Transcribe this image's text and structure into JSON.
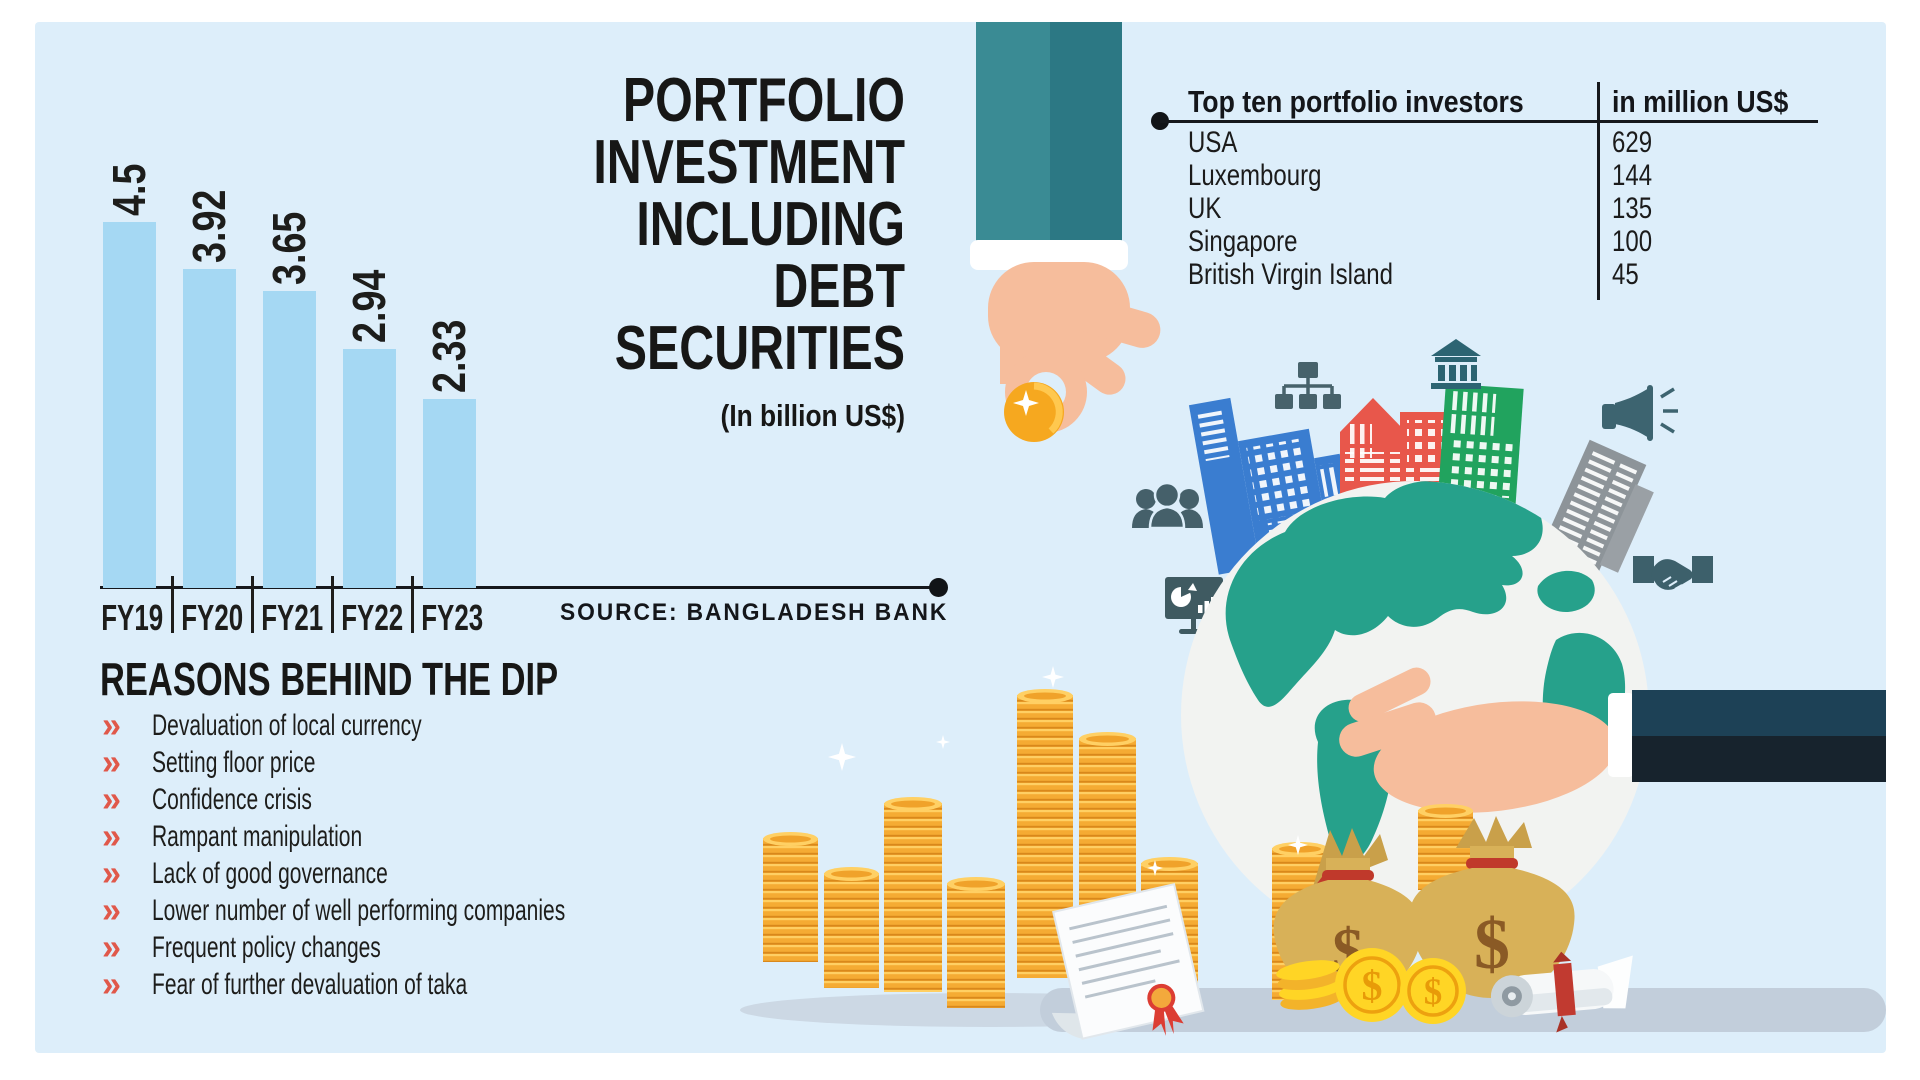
{
  "chart_data": {
    "type": "bar",
    "title": "PORTFOLIO INVESTMENT INCLUDING DEBT SECURITIES",
    "title_lines": [
      "PORTFOLIO",
      "INVESTMENT",
      "INCLUDING",
      "DEBT",
      "SECURITIES"
    ],
    "subtitle": "(In billion US$)",
    "categories": [
      "FY19",
      "FY20",
      "FY21",
      "FY22",
      "FY23"
    ],
    "values": [
      4.5,
      3.92,
      3.65,
      2.94,
      2.33
    ],
    "value_labels": [
      "4.5",
      "3.92",
      "3.65",
      "2.94",
      "2.33"
    ],
    "xlabel": "",
    "ylabel": "",
    "ylim": [
      0,
      4.5
    ],
    "grid": false,
    "legend": false,
    "bar_color": "#a5d8f3",
    "source": "SOURCE: BANGLADESH BANK"
  },
  "investors_table": {
    "title": "Top ten portfolio investors",
    "unit": "in million US$",
    "rows": [
      {
        "country": "USA",
        "value": "629"
      },
      {
        "country": "Luxembourg",
        "value": "144"
      },
      {
        "country": "UK",
        "value": "135"
      },
      {
        "country": "Singapore",
        "value": "100"
      },
      {
        "country": "British Virgin Island",
        "value": "45"
      }
    ]
  },
  "reasons": {
    "heading": "REASONS BEHIND THE DIP",
    "bullet": "»",
    "items": [
      "Devaluation of local currency",
      "Setting floor price",
      "Confidence crisis",
      "Rampant manipulation",
      "Lack of good governance",
      "Lower number of well performing companies",
      "Frequent policy changes",
      "Fear of further devaluation of taka"
    ]
  },
  "illustration": {
    "elements": [
      "hand-dropping-coin",
      "globe",
      "city-buildings",
      "org-chart-icon",
      "bank-icon",
      "megaphone-icon",
      "people-icon",
      "presentation-chart-icon",
      "handshake-icon",
      "hand-holding-globe",
      "coin-stacks",
      "money-bags",
      "dollar-coins",
      "certificate",
      "scroll",
      "sparkles"
    ]
  },
  "colors": {
    "page_bg": "#ffffff",
    "panel_bg": "#ddeefa",
    "bar": "#a5d8f3",
    "text": "#1d1d1b",
    "accent_red": "#e0584a",
    "teal_sleeve": "#37858e",
    "navy_sleeve": "#1d4156",
    "skin": "#f6bd9c",
    "globe_land": "#26a18b",
    "gold": "#f3a93c",
    "money_bag": "#d8b158",
    "icon_slate": "#41626e"
  }
}
